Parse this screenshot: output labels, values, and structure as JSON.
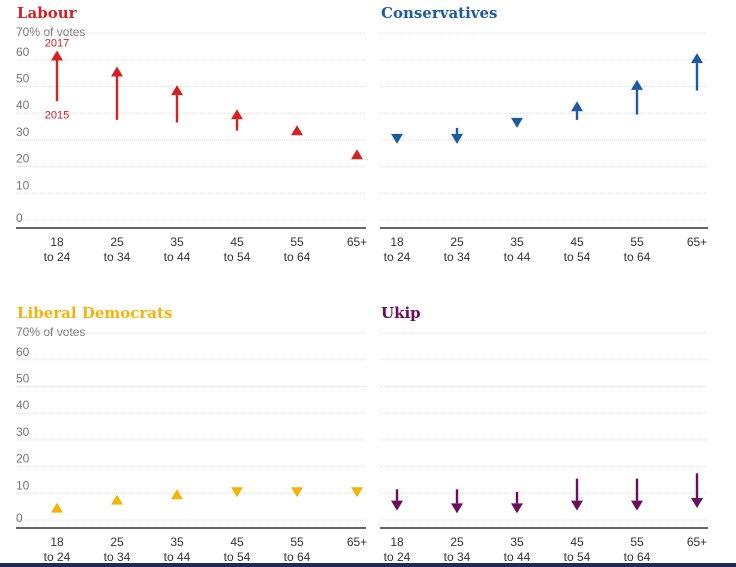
{
  "chart_data": [
    {
      "type": "arrow",
      "title": "Labour",
      "unit_label": "70% of votes",
      "color": "#d42121",
      "ylim": [
        0,
        70
      ],
      "yticks": [
        0,
        10,
        20,
        30,
        40,
        50,
        60
      ],
      "categories": [
        [
          "18",
          "to 24"
        ],
        [
          "25",
          "to 34"
        ],
        [
          "35",
          "to 44"
        ],
        [
          "45",
          "to 54"
        ],
        [
          "55",
          "to 64"
        ],
        [
          "65+",
          ""
        ]
      ],
      "series": [
        {
          "name": "2015",
          "values": [
            43,
            36,
            35,
            32,
            32,
            23
          ]
        },
        {
          "name": "2017",
          "values": [
            62,
            56,
            49,
            40,
            34,
            25
          ]
        }
      ],
      "annotations": [
        {
          "text": "2017",
          "category_index": 0,
          "at_value": 65
        },
        {
          "text": "2015",
          "category_index": 0,
          "at_value": 38
        }
      ]
    },
    {
      "type": "arrow",
      "title": "Conservatives",
      "unit_label": "",
      "color": "#1e5aa0",
      "ylim": [
        0,
        70
      ],
      "yticks": [
        0,
        10,
        20,
        30,
        40,
        50,
        60
      ],
      "categories": [
        [
          "18",
          "to 24"
        ],
        [
          "25",
          "to 34"
        ],
        [
          "35",
          "to 44"
        ],
        [
          "45",
          "to 54"
        ],
        [
          "55",
          "to 64"
        ],
        [
          "65+",
          ""
        ]
      ],
      "series": [
        {
          "name": "2015",
          "values": [
            29,
            33,
            35,
            36,
            38,
            47
          ]
        },
        {
          "name": "2017",
          "values": [
            27,
            27,
            33,
            43,
            51,
            61
          ]
        }
      ],
      "annotations": []
    },
    {
      "type": "arrow",
      "title": "Liberal Democrats",
      "unit_label": "70% of votes",
      "color": "#f5b30a",
      "ylim": [
        0,
        70
      ],
      "yticks": [
        0,
        10,
        20,
        30,
        40,
        50,
        60
      ],
      "categories": [
        [
          "18",
          "to 24"
        ],
        [
          "25",
          "to 34"
        ],
        [
          "35",
          "to 44"
        ],
        [
          "45",
          "to 54"
        ],
        [
          "55",
          "to 64"
        ],
        [
          "65+",
          ""
        ]
      ],
      "series": [
        {
          "name": "2015",
          "values": [
            4,
            7,
            10,
            8,
            8,
            8
          ]
        },
        {
          "name": "2017",
          "values": [
            5,
            8,
            10,
            7,
            7,
            7
          ]
        }
      ],
      "annotations": []
    },
    {
      "type": "arrow",
      "title": "Ukip",
      "unit_label": "",
      "color": "#6b0d5e",
      "ylim": [
        0,
        70
      ],
      "yticks": [
        0,
        10,
        20,
        30,
        40,
        50,
        60
      ],
      "categories": [
        [
          "18",
          "to 24"
        ],
        [
          "25",
          "to 34"
        ],
        [
          "35",
          "to 44"
        ],
        [
          "45",
          "to 54"
        ],
        [
          "55",
          "to 64"
        ],
        [
          "65+",
          ""
        ]
      ],
      "series": [
        {
          "name": "2015",
          "values": [
            10,
            10,
            9,
            14,
            14,
            16
          ]
        },
        {
          "name": "2017",
          "values": [
            2,
            1,
            1,
            2,
            2,
            3
          ]
        }
      ],
      "annotations": []
    }
  ]
}
